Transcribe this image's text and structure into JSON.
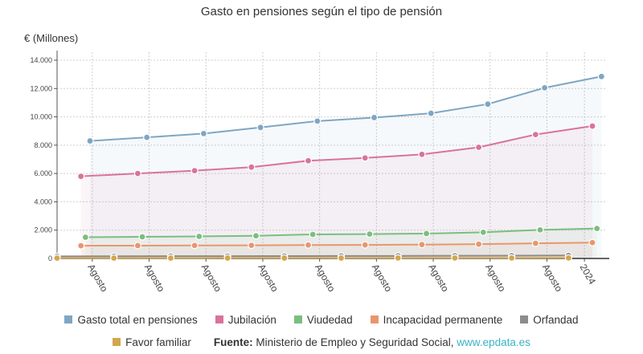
{
  "title": "Gasto en pensiones según el tipo de pensión",
  "unit_label": "€ (Millones)",
  "legend_items": [
    {
      "name": "Gasto total en pensiones",
      "color": "#7ea6c4"
    },
    {
      "name": "Jubilación",
      "color": "#d9739c"
    },
    {
      "name": "Viudedad",
      "color": "#7cbe7e"
    },
    {
      "name": "Incapacidad permanente",
      "color": "#e9966d"
    },
    {
      "name": "Orfandad",
      "color": "#8c8c8c"
    },
    {
      "name": "Favor familiar",
      "color": "#d4a64e"
    }
  ],
  "source": {
    "label": "Fuente:",
    "text": "Ministerio de Empleo y Seguridad Social,",
    "link": "www.epdata.es"
  },
  "chart_data": {
    "type": "line",
    "title": "Gasto en pensiones según el tipo de pensión",
    "ylabel": "€ (Millones)",
    "xlabel": "",
    "ylim": [
      0,
      14000
    ],
    "yticks": [
      0,
      2000,
      4000,
      6000,
      8000,
      10000,
      12000,
      14000
    ],
    "ytick_labels": [
      "0",
      "2.000",
      "4.000",
      "6.000",
      "8.000",
      "10.000",
      "12.000",
      "14.000"
    ],
    "x_tick_labels": [
      "Agosto",
      "Agosto",
      "Agosto",
      "Agosto",
      "Agosto",
      "Agosto",
      "Agosto",
      "Agosto",
      "Agosto",
      "2024"
    ],
    "series": [
      {
        "name": "Gasto total en pensiones",
        "color": "#7ea6c4",
        "x": [
          0.58,
          1.58,
          2.58,
          3.58,
          4.58,
          5.58,
          6.58,
          7.58,
          8.58,
          9.58
        ],
        "values": [
          8300,
          8550,
          8820,
          9250,
          9700,
          9950,
          10250,
          10900,
          12050,
          12850
        ]
      },
      {
        "name": "Jubilación",
        "color": "#d9739c",
        "x": [
          0.42,
          1.42,
          2.42,
          3.42,
          4.42,
          5.42,
          6.42,
          7.42,
          8.42,
          9.42
        ],
        "values": [
          5800,
          6000,
          6200,
          6450,
          6900,
          7100,
          7350,
          7850,
          8750,
          9350
        ]
      },
      {
        "name": "Viudedad",
        "color": "#7cbe7e",
        "x": [
          0.5,
          1.5,
          2.5,
          3.5,
          4.5,
          5.5,
          6.5,
          7.5,
          8.5,
          9.5
        ],
        "values": [
          1500,
          1530,
          1560,
          1600,
          1700,
          1720,
          1760,
          1850,
          2020,
          2120
        ]
      },
      {
        "name": "Incapacidad permanente",
        "color": "#e9966d",
        "x": [
          0.42,
          1.42,
          2.42,
          3.42,
          4.42,
          5.42,
          6.42,
          7.42,
          8.42,
          9.42
        ],
        "values": [
          900,
          910,
          920,
          930,
          950,
          960,
          980,
          1010,
          1070,
          1120
        ]
      },
      {
        "name": "Orfandad",
        "color": "#8c8c8c",
        "x": [
          0,
          1,
          2,
          3,
          4,
          5,
          6,
          7,
          8,
          9
        ],
        "values": [
          150,
          155,
          160,
          165,
          170,
          175,
          180,
          190,
          200,
          210
        ]
      },
      {
        "name": "Favor familiar",
        "color": "#d4a64e",
        "x": [
          0,
          1,
          2,
          3,
          4,
          5,
          6,
          7,
          8,
          9
        ],
        "values": [
          30,
          30,
          30,
          32,
          32,
          33,
          34,
          35,
          37,
          40
        ]
      }
    ],
    "grid": true,
    "legend_position": "bottom"
  }
}
